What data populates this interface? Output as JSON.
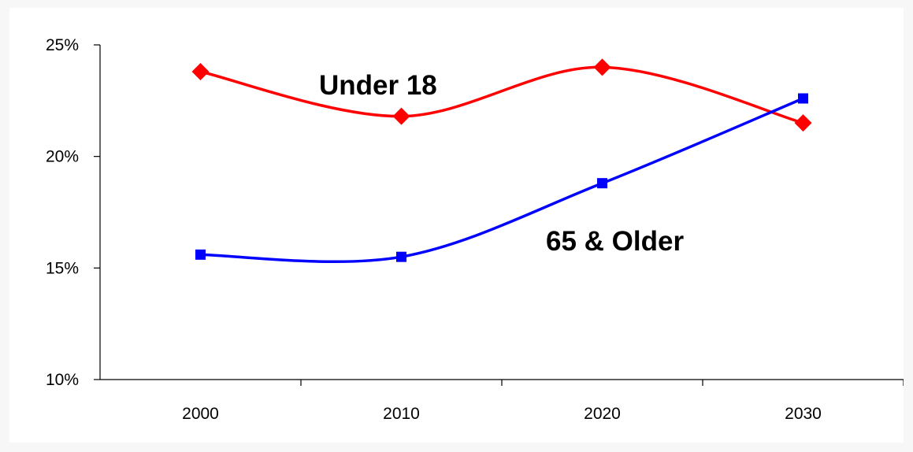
{
  "chart_data": {
    "type": "line",
    "categories": [
      "2000",
      "2010",
      "2020",
      "2030"
    ],
    "ylim": [
      10,
      25
    ],
    "y_ticks": [
      "10%",
      "15%",
      "20%",
      "25%"
    ],
    "grid": false,
    "series": [
      {
        "name": "Under 18",
        "values": [
          23.8,
          21.8,
          24.0,
          21.5
        ],
        "color": "#ff0000",
        "marker": "diamond"
      },
      {
        "name": "65 & Older",
        "values": [
          15.6,
          15.5,
          18.8,
          22.6
        ],
        "color": "#0000ff",
        "marker": "square"
      }
    ]
  }
}
